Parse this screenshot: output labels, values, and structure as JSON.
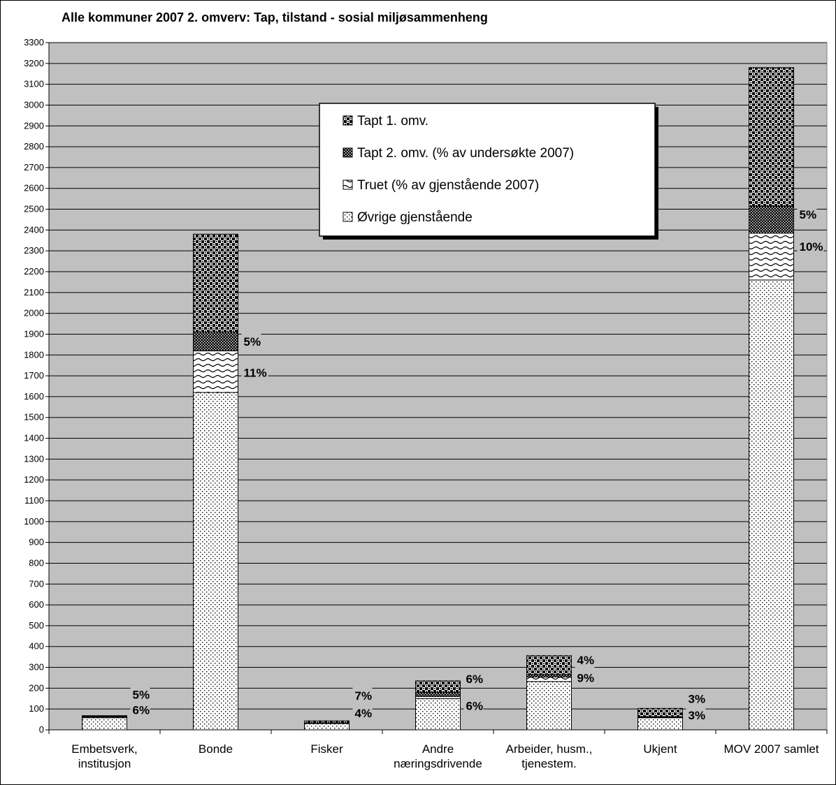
{
  "chart_data": {
    "type": "bar",
    "stacked": true,
    "title": "Alle kommuner 2007 2. omverv: Tap, tilstand - sosial miljøsammenheng",
    "xlabel": "",
    "ylabel": "",
    "ylim": [
      0,
      3300
    ],
    "ytick_step": 100,
    "grid": true,
    "legend_position": "top-center",
    "categories": [
      [
        "Embetsverk,",
        "institusjon"
      ],
      [
        "Bonde"
      ],
      [
        "Fisker"
      ],
      [
        "Andre",
        "næringsdrivende"
      ],
      [
        "Arbeider, husm.,",
        "tjenestem."
      ],
      [
        "Ukjent"
      ],
      [
        "MOV 2007 samlet"
      ]
    ],
    "series": [
      {
        "name": "Øvrige gjenstående",
        "pattern": "dots-sparse",
        "values": [
          58,
          1620,
          30,
          150,
          232,
          58,
          2160
        ]
      },
      {
        "name": "Truet (% av gjenstående 2007)",
        "pattern": "waves",
        "values": [
          4,
          200,
          1,
          10,
          22,
          2,
          225
        ]
      },
      {
        "name": "Tapt 2. omv. (% av undersøkte 2007)",
        "pattern": "dots-dense",
        "values": [
          3,
          90,
          2,
          20,
          12,
          3,
          130
        ]
      },
      {
        "name": "Tapt 1. omv.",
        "pattern": "checker",
        "values": [
          3,
          470,
          10,
          55,
          90,
          40,
          665
        ]
      }
    ],
    "legend_order": [
      3,
      2,
      1,
      0
    ],
    "data_labels": [
      {
        "category": 0,
        "y": 170,
        "text": "5%"
      },
      {
        "category": 0,
        "y": 95,
        "text": "6%"
      },
      {
        "category": 1,
        "y": 1865,
        "text": "5%"
      },
      {
        "category": 1,
        "y": 1715,
        "text": "11%"
      },
      {
        "category": 2,
        "y": 165,
        "text": "7%"
      },
      {
        "category": 2,
        "y": 80,
        "text": "4%"
      },
      {
        "category": 3,
        "y": 245,
        "text": "6%"
      },
      {
        "category": 3,
        "y": 115,
        "text": "6%"
      },
      {
        "category": 4,
        "y": 335,
        "text": "4%"
      },
      {
        "category": 4,
        "y": 250,
        "text": "9%"
      },
      {
        "category": 5,
        "y": 150,
        "text": "3%"
      },
      {
        "category": 5,
        "y": 70,
        "text": "3%"
      },
      {
        "category": 6,
        "y": 2475,
        "text": "5%"
      },
      {
        "category": 6,
        "y": 2320,
        "text": "10%"
      }
    ]
  }
}
